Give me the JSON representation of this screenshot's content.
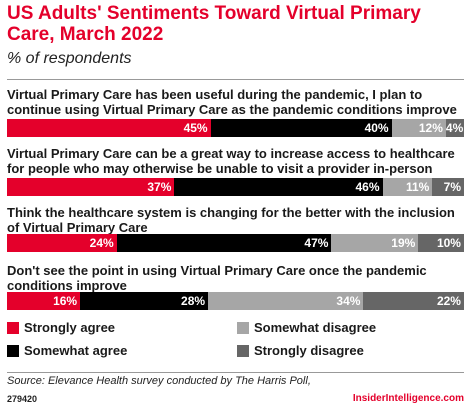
{
  "header": {
    "title": "US Adults' Sentiments Toward Virtual Primary Care, March 2022",
    "subtitle": "% of respondents"
  },
  "colors": {
    "strongly_agree": "#e4002b",
    "somewhat_agree": "#000000",
    "somewhat_disagree": "#a6a6a6",
    "strongly_disagree": "#666666",
    "brand": "#e4002b"
  },
  "chart_data": {
    "type": "bar",
    "orientation": "horizontal",
    "stacked": true,
    "title": "US Adults' Sentiments Toward Virtual Primary Care, March 2022",
    "subtitle": "% of respondents",
    "categories": [
      "Virtual Primary Care has been useful during the pandemic, I plan to continue using Virtual Primary Care as the pandemic conditions improve",
      "Virtual Primary Care can be a great way to increase access to healthcare for people who may otherwise be unable to visit a provider in-person",
      "Think the healthcare system is changing for the better with the inclusion of Virtual Primary Care",
      "Don't see the point in using Virtual Primary Care once the pandemic conditions improve"
    ],
    "series": [
      {
        "name": "Strongly agree",
        "values": [
          45,
          37,
          24,
          16
        ],
        "labels": [
          "45%",
          "37%",
          "24%",
          "16%"
        ]
      },
      {
        "name": "Somewhat agree",
        "values": [
          40,
          46,
          47,
          28
        ],
        "labels": [
          "40%",
          "46%",
          "47%",
          "28%"
        ]
      },
      {
        "name": "Somewhat disagree",
        "values": [
          12,
          11,
          19,
          34
        ],
        "labels": [
          "12%",
          "11%",
          "19%",
          "34%"
        ]
      },
      {
        "name": "Strongly disagree",
        "values": [
          4,
          7,
          10,
          22
        ],
        "labels": [
          "4%",
          "7%",
          "10%",
          "22%"
        ]
      }
    ],
    "legend": "bottom",
    "grid": false
  },
  "footer": {
    "source": "Source: Elevance Health survey conducted by The Harris Poll,",
    "chart_id": "279420",
    "brand": "InsiderIntelligence.com"
  }
}
